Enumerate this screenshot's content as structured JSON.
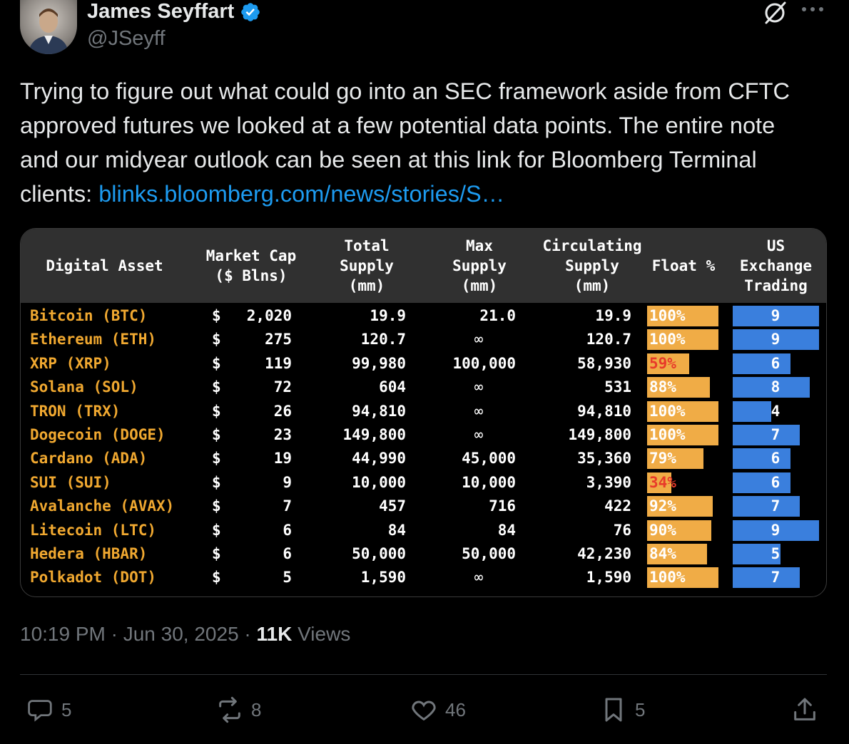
{
  "author": {
    "name": "James Seyffart",
    "handle": "@JSeyff"
  },
  "tweet": {
    "text": "Trying to figure out what could go into an SEC framework aside from CFTC approved futures we looked at a few potential data points. The entire note and our midyear outlook can be seen at this link for Bloomberg Terminal clients: ",
    "link": "blinks.bloomberg.com/news/stories/S…"
  },
  "table": {
    "headers": {
      "asset": "Digital Asset",
      "mcap": "Market Cap\n($ Blns)",
      "total": "Total\nSupply\n(mm)",
      "max": "Max\nSupply\n(mm)",
      "circ": "Circulating\nSupply\n(mm)",
      "float": "Float %",
      "us": "US\nExchange\nTrading"
    },
    "rows": [
      {
        "asset": "Bitcoin (BTC)",
        "dollar": "$",
        "mcap": "2,020",
        "total": "19.9",
        "max": "21.0",
        "circ": "19.9",
        "float": "100%",
        "float_pct": 100,
        "us": "9"
      },
      {
        "asset": "Ethereum (ETH)",
        "dollar": "$",
        "mcap": "275",
        "total": "120.7",
        "max": "∞",
        "circ": "120.7",
        "float": "100%",
        "float_pct": 100,
        "us": "9"
      },
      {
        "asset": "XRP (XRP)",
        "dollar": "$",
        "mcap": "119",
        "total": "99,980",
        "max": "100,000",
        "circ": "58,930",
        "float": "59%",
        "float_pct": 59,
        "us": "6"
      },
      {
        "asset": "Solana (SOL)",
        "dollar": "$",
        "mcap": "72",
        "total": "604",
        "max": "∞",
        "circ": "531",
        "float": "88%",
        "float_pct": 88,
        "us": "8"
      },
      {
        "asset": "TRON (TRX)",
        "dollar": "$",
        "mcap": "26",
        "total": "94,810",
        "max": "∞",
        "circ": "94,810",
        "float": "100%",
        "float_pct": 100,
        "us": "4"
      },
      {
        "asset": "Dogecoin (DOGE)",
        "dollar": "$",
        "mcap": "23",
        "total": "149,800",
        "max": "∞",
        "circ": "149,800",
        "float": "100%",
        "float_pct": 100,
        "us": "7"
      },
      {
        "asset": "Cardano (ADA)",
        "dollar": "$",
        "mcap": "19",
        "total": "44,990",
        "max": "45,000",
        "circ": "35,360",
        "float": "79%",
        "float_pct": 79,
        "us": "6"
      },
      {
        "asset": "SUI (SUI)",
        "dollar": "$",
        "mcap": "9",
        "total": "10,000",
        "max": "10,000",
        "circ": "3,390",
        "float": "34%",
        "float_pct": 34,
        "us": "6"
      },
      {
        "asset": "Avalanche (AVAX)",
        "dollar": "$",
        "mcap": "7",
        "total": "457",
        "max": "716",
        "circ": "422",
        "float": "92%",
        "float_pct": 92,
        "us": "7"
      },
      {
        "asset": "Litecoin (LTC)",
        "dollar": "$",
        "mcap": "6",
        "total": "84",
        "max": "84",
        "circ": "76",
        "float": "90%",
        "float_pct": 90,
        "us": "9"
      },
      {
        "asset": "Hedera (HBAR)",
        "dollar": "$",
        "mcap": "6",
        "total": "50,000",
        "max": "50,000",
        "circ": "42,230",
        "float": "84%",
        "float_pct": 84,
        "us": "5"
      },
      {
        "asset": "Polkadot (DOT)",
        "dollar": "$",
        "mcap": "5",
        "total": "1,590",
        "max": "∞",
        "circ": "1,590",
        "float": "100%",
        "float_pct": 100,
        "us": "7"
      }
    ]
  },
  "meta": {
    "time": "10:19 PM · Jun 30, 2025 · ",
    "views_count": "11K",
    "views_label": " Views"
  },
  "actions": {
    "replies": "5",
    "reposts": "8",
    "likes": "46",
    "bookmarks": "5"
  },
  "colors": {
    "accent": "#1d9bf0",
    "float_bar": "#f0ac46",
    "us_bar": "#3a7fdd",
    "asset_text": "#f0a830",
    "low_float": "#e83a2a"
  }
}
